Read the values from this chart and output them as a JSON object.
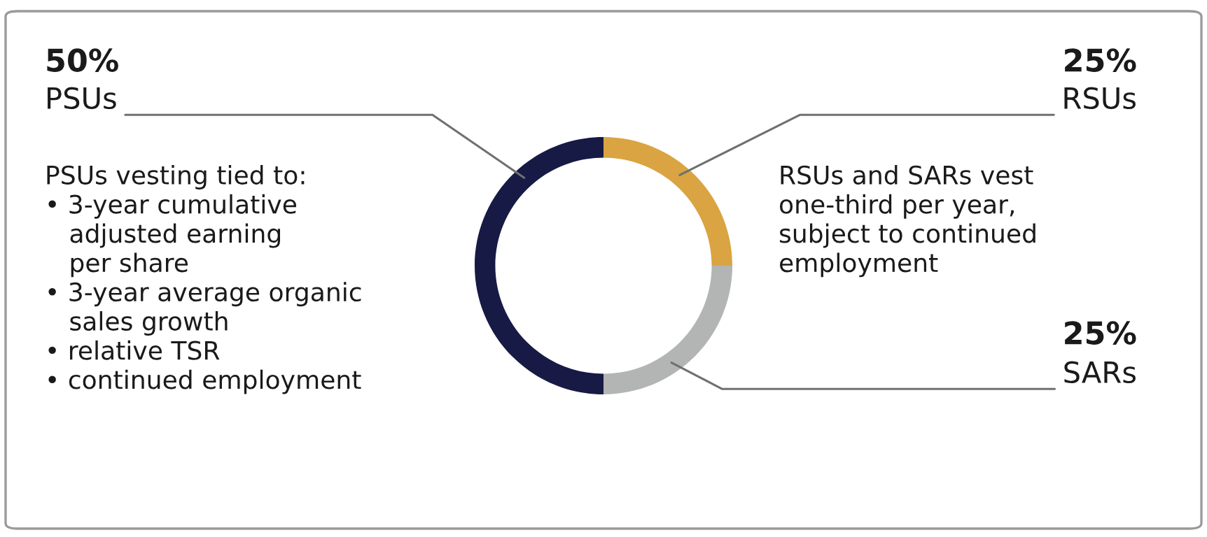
{
  "chart_data": {
    "type": "donut",
    "categories": [
      "RSUs",
      "SARs",
      "PSUs"
    ],
    "values": [
      25,
      25,
      50
    ],
    "colors": [
      "#d9a441",
      "#b3b4b4",
      "#171a44"
    ],
    "value_labels": [
      "25%",
      "25%",
      "50%"
    ],
    "annotations": [
      "PSUs vesting tied to:\n• 3-year cumulative\n   adjusted earning\n   per share\n• 3-year average organic\n   sales growth\n• relative TSR\n• continued employment",
      "RSUs and SARs vest\none-third per year,\nsubject to continued\nemployment"
    ]
  }
}
